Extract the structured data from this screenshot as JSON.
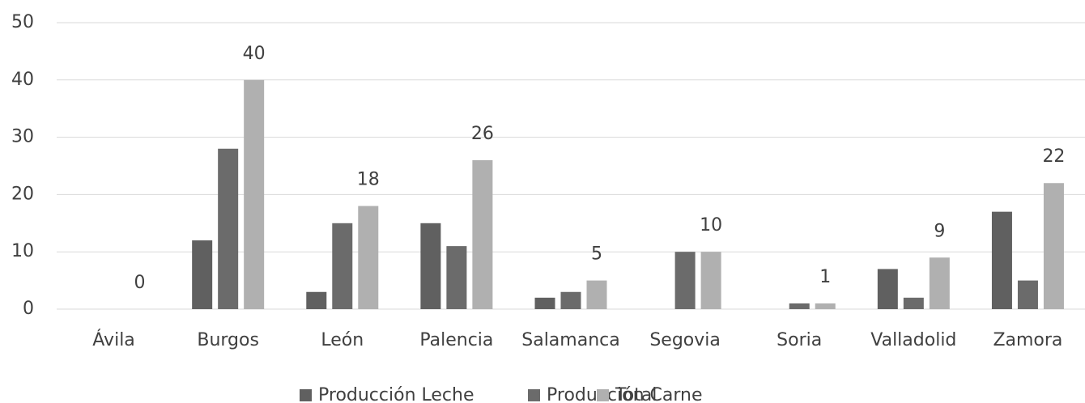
{
  "chart_data": {
    "type": "bar",
    "categories": [
      "Ávila",
      "Burgos",
      "León",
      "Palencia",
      "Salamanca",
      "Segovia",
      "Soria",
      "Valladolid",
      "Zamora"
    ],
    "series": [
      {
        "name": "Producción Leche",
        "color": "#606060",
        "values": [
          0,
          12,
          3,
          15,
          2,
          0,
          0,
          7,
          17
        ]
      },
      {
        "name": "Producción Carne",
        "color": "#6b6b6b",
        "values": [
          0,
          28,
          15,
          11,
          3,
          10,
          1,
          2,
          5
        ]
      },
      {
        "name": "Total",
        "color": "#b0b0b0",
        "values": [
          0,
          40,
          18,
          26,
          5,
          10,
          1,
          9,
          22
        ],
        "show_labels": true
      }
    ],
    "ylim": [
      0,
      50
    ],
    "yticks": [
      0,
      10,
      20,
      30,
      40,
      50
    ],
    "grid": true,
    "legend": "bottom"
  }
}
